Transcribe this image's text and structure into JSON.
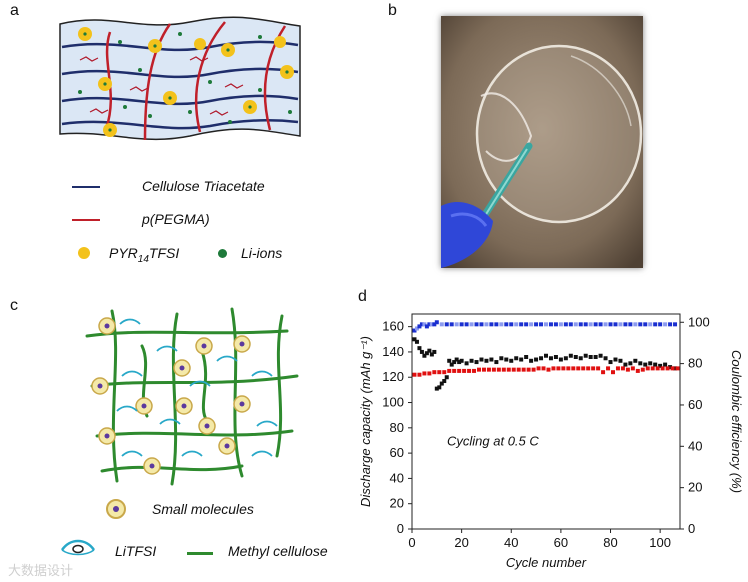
{
  "figure": {
    "panel_labels": [
      "a",
      "b",
      "c",
      "d"
    ],
    "panel_a": {
      "legend": [
        {
          "label": "Cellulose Triacetate",
          "symbol": "line",
          "color": "#1f2e6b"
        },
        {
          "label": "p(PEGMA)",
          "symbol": "line",
          "color": "#c0202a"
        },
        {
          "label_main": "PYR",
          "label_sub1": "14",
          "label_mid": "TFSI",
          "symbol": "dot",
          "color": "#f3c21b"
        },
        {
          "label": "Li-ions",
          "symbol": "dot",
          "color": "#1e7a3a"
        }
      ]
    },
    "panel_c": {
      "legend": [
        {
          "label": "Small molecules",
          "symbol": "ring-icon"
        },
        {
          "label": "LiTFSI",
          "symbol": "lithium-salt-icon"
        },
        {
          "label": "Methyl cellulose",
          "symbol": "line",
          "color": "#2e8a2e"
        }
      ]
    },
    "watermark": "大数据设计"
  },
  "chart_data": {
    "type": "scatter",
    "annotation": "Cycling at 0.5 C",
    "xlabel": "Cycle number",
    "ylabel_left": "Discharge capacity (mAh g⁻¹)",
    "ylabel_right": "Coulombic efficiency (%)",
    "xlim": [
      0,
      108
    ],
    "ylim_left": [
      0,
      170
    ],
    "ylim_right": [
      0,
      104
    ],
    "x_ticks": [
      0,
      20,
      40,
      60,
      80,
      100
    ],
    "y_ticks_left": [
      0,
      20,
      40,
      60,
      80,
      100,
      120,
      140,
      160
    ],
    "y_ticks_right": [
      0,
      20,
      40,
      60,
      80,
      100
    ],
    "series": [
      {
        "name": "Discharge capacity (black)",
        "color": "#111111",
        "axis": "left",
        "x": [
          1,
          2,
          3,
          4,
          5,
          6,
          7,
          8,
          9,
          10,
          11,
          12,
          13,
          14,
          15,
          16,
          17,
          18,
          19,
          20,
          22,
          24,
          26,
          28,
          30,
          32,
          34,
          36,
          38,
          40,
          42,
          44,
          46,
          48,
          50,
          52,
          54,
          56,
          58,
          60,
          62,
          64,
          66,
          68,
          70,
          72,
          74,
          76,
          78,
          80,
          82,
          84,
          86,
          88,
          90,
          92,
          94,
          96,
          98,
          100,
          102,
          104,
          106
        ],
        "y": [
          150,
          148,
          143,
          140,
          137,
          139,
          141,
          138,
          140,
          111,
          112,
          115,
          117,
          120,
          133,
          130,
          132,
          134,
          132,
          133,
          131,
          133,
          132,
          134,
          133,
          134,
          132,
          135,
          134,
          133,
          135,
          134,
          136,
          133,
          134,
          135,
          137,
          135,
          136,
          134,
          135,
          137,
          136,
          135,
          137,
          136,
          136,
          137,
          135,
          132,
          134,
          133,
          130,
          131,
          133,
          131,
          130,
          131,
          130,
          129,
          130,
          128,
          127
        ]
      },
      {
        "name": "Discharge capacity (red)",
        "color": "#e01010",
        "axis": "left",
        "x": [
          1,
          3,
          5,
          7,
          9,
          11,
          13,
          15,
          17,
          19,
          21,
          23,
          25,
          27,
          29,
          31,
          33,
          35,
          37,
          39,
          41,
          43,
          45,
          47,
          49,
          51,
          53,
          55,
          57,
          59,
          61,
          63,
          65,
          67,
          69,
          71,
          73,
          75,
          77,
          79,
          81,
          83,
          85,
          87,
          89,
          91,
          93,
          95,
          97,
          99,
          101,
          103,
          105,
          107
        ],
        "y": [
          122,
          122,
          123,
          123,
          124,
          124,
          124,
          125,
          125,
          125,
          125,
          125,
          125,
          126,
          126,
          126,
          126,
          126,
          126,
          126,
          126,
          126,
          126,
          126,
          126,
          127,
          127,
          126,
          127,
          127,
          127,
          127,
          127,
          127,
          127,
          127,
          127,
          127,
          124,
          127,
          124,
          127,
          127,
          126,
          127,
          125,
          126,
          127,
          127,
          127,
          127,
          127,
          127,
          127
        ]
      },
      {
        "name": "Coulombic efficiency",
        "color": "#1a2fd0",
        "axis": "right",
        "x": [
          1,
          2,
          3,
          4,
          5,
          6,
          7,
          8,
          9,
          10,
          12,
          14,
          16,
          18,
          20,
          22,
          24,
          26,
          28,
          30,
          32,
          34,
          36,
          38,
          40,
          42,
          44,
          46,
          48,
          50,
          52,
          54,
          56,
          58,
          60,
          62,
          64,
          66,
          68,
          70,
          72,
          74,
          76,
          78,
          80,
          82,
          84,
          86,
          88,
          90,
          92,
          94,
          96,
          98,
          100,
          102,
          104,
          106
        ],
        "y": [
          96,
          97,
          98,
          99,
          99,
          98,
          99,
          99,
          99,
          100,
          99,
          99,
          99,
          99,
          99,
          99,
          99,
          99,
          99,
          99,
          99,
          99,
          99,
          99,
          99,
          99,
          99,
          99,
          99,
          99,
          99,
          99,
          99,
          99,
          99,
          99,
          99,
          99,
          99,
          99,
          99,
          99,
          99,
          99,
          99,
          99,
          99,
          99,
          99,
          99,
          99,
          99,
          99,
          99,
          99,
          99,
          99,
          99
        ]
      }
    ]
  }
}
